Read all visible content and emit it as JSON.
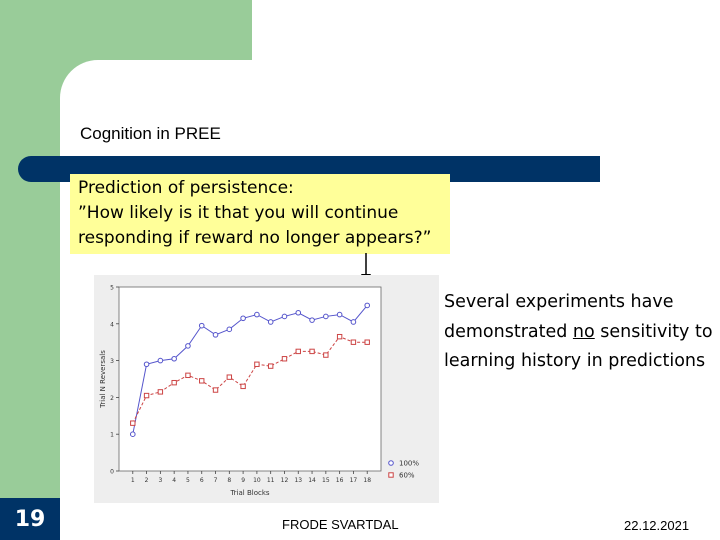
{
  "slide": {
    "title": "Cognition in PREE",
    "page_number": "19",
    "footer_center": "FRODE SVARTDAL",
    "footer_date": "22.12.2021"
  },
  "callout": {
    "line1": "Prediction of persistence:",
    "line2": "”How likely is it that you will continue",
    "line3": "responding if reward no longer appears?”"
  },
  "side_text": {
    "part1": "Several experiments have demonstrated ",
    "underlined": "no",
    "part2": " sensitivity to learning history in predictions"
  },
  "colors": {
    "template_green": "#99cc99",
    "navy": "#003366",
    "callout_yellow": "#ffff99",
    "series_100": "#5555cc",
    "series_60": "#cc4444"
  },
  "chart_data": {
    "type": "line",
    "x": [
      1,
      2,
      3,
      4,
      5,
      6,
      7,
      8,
      9,
      10,
      11,
      12,
      13,
      14,
      15,
      16,
      17,
      18
    ],
    "xticks": [
      "1",
      "2",
      "3",
      "4",
      "5",
      "6",
      "7",
      "8",
      "9",
      "10",
      "11",
      "12",
      "13",
      "14",
      "15",
      "16",
      "17",
      "18"
    ],
    "yticks": [
      "0",
      "1",
      "2",
      "3",
      "4",
      "5"
    ],
    "xlabel": "Trial Blocks",
    "ylabel": "Trial N Reversals",
    "xlim": [
      0,
      19
    ],
    "ylim": [
      0,
      5
    ],
    "grid": false,
    "legend_position": "bottom-right",
    "series": [
      {
        "name": "100%",
        "marker": "circle",
        "color": "#5555cc",
        "values": [
          1.0,
          2.9,
          3.0,
          3.05,
          3.4,
          3.95,
          3.7,
          3.85,
          4.15,
          4.25,
          4.05,
          4.2,
          4.3,
          4.1,
          4.2,
          4.25,
          4.05,
          4.5
        ]
      },
      {
        "name": "60%",
        "marker": "square",
        "color": "#cc4444",
        "values": [
          1.3,
          2.05,
          2.15,
          2.4,
          2.6,
          2.45,
          2.2,
          2.55,
          2.3,
          2.9,
          2.85,
          3.05,
          3.25,
          3.25,
          3.15,
          3.65,
          3.5,
          3.5
        ]
      }
    ]
  }
}
